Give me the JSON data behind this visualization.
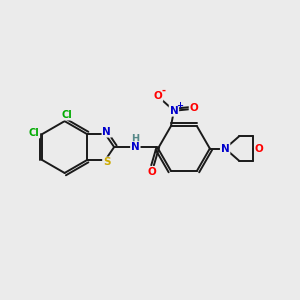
{
  "bg_color": "#ebebeb",
  "bond_color": "#1a1a1a",
  "bond_width": 1.4,
  "atom_colors": {
    "C": "#000000",
    "N": "#0000cc",
    "O": "#ff0000",
    "S": "#ccaa00",
    "Cl": "#00aa00",
    "H": "#558888"
  },
  "figsize": [
    3.0,
    3.0
  ],
  "dpi": 100,
  "xlim": [
    0,
    10
  ],
  "ylim": [
    0,
    10
  ]
}
